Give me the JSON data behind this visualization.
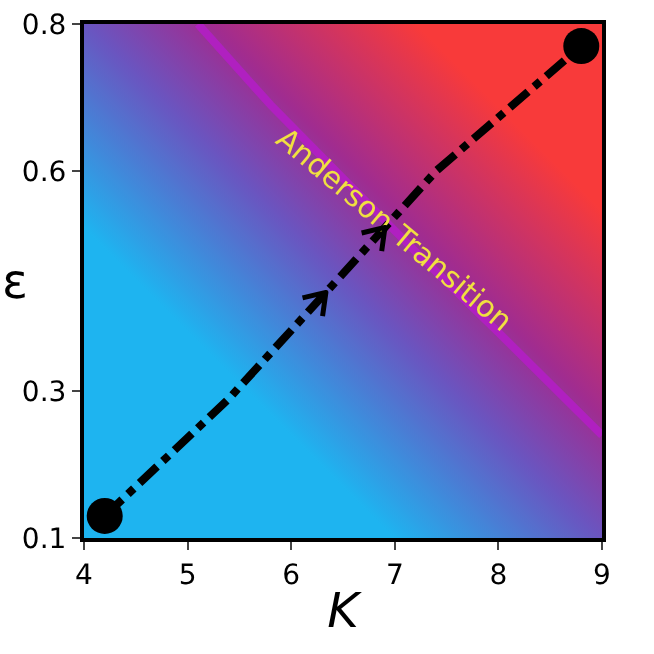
{
  "chart_data": {
    "type": "line",
    "xlabel": "K",
    "ylabel": "ε",
    "xlim": [
      4,
      9
    ],
    "ylim": [
      0.1,
      0.8
    ],
    "xticks": [
      4,
      5,
      6,
      7,
      8,
      9
    ],
    "yticks": [
      0.1,
      0.3,
      0.6,
      0.8
    ],
    "series": [
      {
        "color": "#b020c0",
        "line_style": "solid",
        "x": [
          5.1,
          5.8,
          6.5,
          7.2,
          8.0,
          9.0
        ],
        "values": [
          0.8,
          0.69,
          0.59,
          0.49,
          0.38,
          0.24
        ]
      },
      {
        "color": "#000000",
        "line_style": "dashed",
        "x": [
          4.2,
          5.4,
          6.5,
          7.4,
          8.8
        ],
        "values": [
          0.13,
          0.29,
          0.46,
          0.6,
          0.77
        ]
      },
      {
        "type": "scatter",
        "color": "#000000",
        "marker": "circle",
        "x": [
          4.2,
          8.8
        ],
        "values": [
          0.13,
          0.77
        ]
      }
    ],
    "annotations": [
      "Anderson Transition"
    ]
  }
}
